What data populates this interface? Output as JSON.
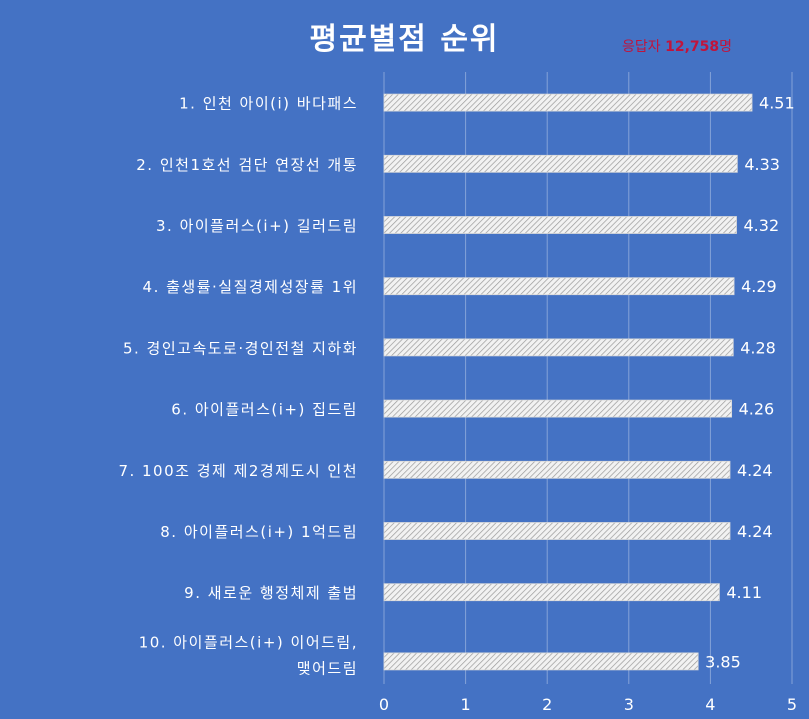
{
  "title": "평균별점 순위",
  "respondents": {
    "prefix": "응답자 ",
    "count": "12,758",
    "suffix": "명"
  },
  "colors": {
    "background": "#4472C4",
    "bar": "#E8E8E8",
    "text": "#FFFFFF",
    "accent": "#C0143C"
  },
  "chart_data": {
    "type": "bar",
    "orientation": "horizontal",
    "title": "평균별점 순위",
    "categories": [
      [
        "1. 인천 아이(i) 바다패스"
      ],
      [
        "2. 인천1호선 검단 연장선 개통"
      ],
      [
        "3. 아이플러스(i+) 길러드림"
      ],
      [
        "4. 출생률·실질경제성장률 1위"
      ],
      [
        "5. 경인고속도로·경인전철 지하화"
      ],
      [
        "6. 아이플러스(i+) 집드림"
      ],
      [
        "7. 100조 경제 제2경제도시 인천"
      ],
      [
        "8. 아이플러스(i+) 1억드림"
      ],
      [
        "9. 새로운 행정체제 출범"
      ],
      [
        "10. 아이플러스(i+) 이어드림,",
        "맺어드림"
      ]
    ],
    "values": [
      4.51,
      4.33,
      4.32,
      4.29,
      4.28,
      4.26,
      4.24,
      4.24,
      4.11,
      3.85
    ],
    "value_labels": [
      "4.51",
      "4.33",
      "4.32",
      "4.29",
      "4.28",
      "4.26",
      "4.24",
      "4.24",
      "4.11",
      "3.85"
    ],
    "xlim": [
      0,
      5
    ],
    "xticks": [
      0,
      1,
      2,
      3,
      4,
      5
    ],
    "xlabel": "",
    "ylabel": "",
    "grid": "vertical"
  }
}
